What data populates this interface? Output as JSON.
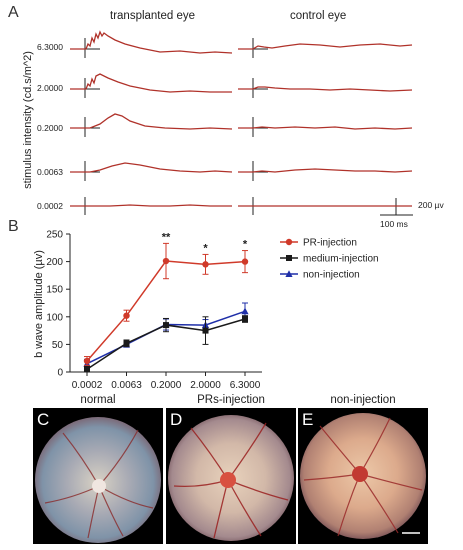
{
  "panel_a": {
    "letter": "A",
    "col_titles": [
      "transplanted eye",
      "control eye"
    ],
    "ylabel": "stimulus intensity (cd.s/m^2)",
    "intensity_labels": [
      "6.3000",
      "2.0000",
      "0.2000",
      "0.0063",
      "0.0002"
    ],
    "scale_voltage": "200 µv",
    "scale_time": "100 ms"
  },
  "panel_b": {
    "letter": "B"
  },
  "chart_data": {
    "type": "line",
    "title": "",
    "xlabel": "",
    "ylabel": "b wave amplitude (µv)",
    "categories": [
      "0.0002",
      "0.0063",
      "0.2000",
      "2.0000",
      "6.3000"
    ],
    "ylim": [
      0,
      250
    ],
    "yticks": [
      0,
      50,
      100,
      150,
      200,
      250
    ],
    "grid": false,
    "legend_position": "top-right",
    "series": [
      {
        "name": "PR-injection",
        "color": "#d03a2a",
        "marker": "circle",
        "values": [
          20,
          102,
          201,
          195,
          200
        ],
        "errors": [
          8,
          10,
          32,
          18,
          20
        ]
      },
      {
        "name": "medium-injection",
        "color": "#1a1a1a",
        "marker": "square",
        "values": [
          5,
          52,
          85,
          75,
          96
        ],
        "errors": [
          5,
          6,
          12,
          25,
          6
        ]
      },
      {
        "name": "non-injection",
        "color": "#1f2fa8",
        "marker": "triangle",
        "values": [
          15,
          50,
          86,
          85,
          110
        ],
        "errors": [
          8,
          5,
          10,
          10,
          15
        ]
      }
    ],
    "annotations": [
      {
        "category": "0.2000",
        "text": "**"
      },
      {
        "category": "2.0000",
        "text": "*"
      },
      {
        "category": "6.3000",
        "text": "*"
      }
    ]
  },
  "panels_cde": [
    {
      "letter": "C",
      "title": "normal"
    },
    {
      "letter": "D",
      "title": "PRs-injection"
    },
    {
      "letter": "E",
      "title": "non-injection"
    }
  ]
}
